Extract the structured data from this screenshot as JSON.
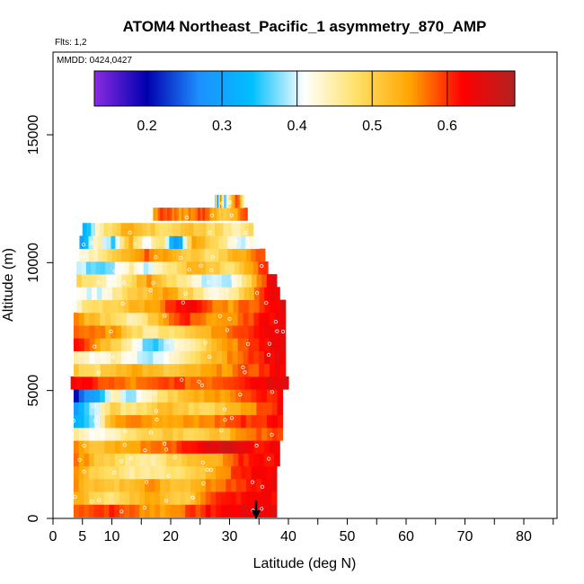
{
  "chart_data": {
    "type": "heatmap",
    "title": "ATOM4 Northeast_Pacific_1 asymmetry_870_AMP",
    "flights_label": "Flts: 1,2",
    "date_label": "MMDD: 0424,0427",
    "xlabel": "Latitude (deg N)",
    "ylabel": "Altitude (m)",
    "xlim": [
      0,
      85
    ],
    "ylim": [
      0,
      17500
    ],
    "x_ticks_minor": [
      0,
      5,
      10,
      15,
      20,
      25,
      30,
      35,
      40,
      45,
      50,
      55,
      60,
      65,
      70,
      75,
      80,
      85
    ],
    "x_tick_labels": [
      {
        "value": 0,
        "label": "0"
      },
      {
        "value": 5,
        "label": "5"
      },
      {
        "value": 10,
        "label": "10"
      },
      {
        "value": 20,
        "label": "20"
      },
      {
        "value": 30,
        "label": "30"
      },
      {
        "value": 40,
        "label": "40"
      },
      {
        "value": 50,
        "label": "50"
      },
      {
        "value": 60,
        "label": "60"
      },
      {
        "value": 70,
        "label": "70"
      },
      {
        "value": 80,
        "label": "80"
      }
    ],
    "y_tick_labels": [
      {
        "value": 0,
        "label": "0"
      },
      {
        "value": 5000,
        "label": "5000"
      },
      {
        "value": 10000,
        "label": "10000"
      },
      {
        "value": 15000,
        "label": "15000"
      }
    ],
    "colorbar": {
      "min": 0.13,
      "max": 0.69,
      "stops": [
        "#8a2be2",
        "#0000b0",
        "#1e90ff",
        "#00bfff",
        "#ffffff",
        "#ffe066",
        "#ffa500",
        "#ff0000",
        "#b22222"
      ],
      "tick_labels": [
        {
          "value": 0.2,
          "label": "0.2"
        },
        {
          "value": 0.3,
          "label": "0.3"
        },
        {
          "value": 0.4,
          "label": "0.4"
        },
        {
          "value": 0.5,
          "label": "0.5"
        },
        {
          "value": 0.6,
          "label": "0.6"
        }
      ]
    },
    "marker": {
      "label": "arrow",
      "latitude": 34.5,
      "altitude": 700
    },
    "rows": [
      {
        "alt": 300,
        "lat_min": 3.5,
        "lat_max": 38,
        "levels": [
          0.58,
          0.6,
          0.6,
          0.58,
          0.56,
          0.55,
          0.58,
          0.6,
          0.62,
          0.63,
          0.64,
          0.64
        ]
      },
      {
        "alt": 800,
        "lat_min": 3.5,
        "lat_max": 38,
        "levels": [
          0.54,
          0.5,
          0.48,
          0.5,
          0.55,
          0.52,
          0.5,
          0.55,
          0.6,
          0.62,
          0.63,
          0.62
        ]
      },
      {
        "alt": 1300,
        "lat_min": 3.5,
        "lat_max": 38,
        "levels": [
          0.55,
          0.52,
          0.5,
          0.53,
          0.56,
          0.53,
          0.52,
          0.55,
          0.58,
          0.6,
          0.62,
          0.63
        ]
      },
      {
        "alt": 1800,
        "lat_min": 3.5,
        "lat_max": 38,
        "levels": [
          0.57,
          0.5,
          0.48,
          0.46,
          0.45,
          0.46,
          0.48,
          0.5,
          0.55,
          0.6,
          0.62,
          0.62
        ]
      },
      {
        "alt": 2300,
        "lat_min": 3.5,
        "lat_max": 38.5,
        "levels": [
          0.58,
          0.52,
          0.5,
          0.46,
          0.45,
          0.48,
          0.52,
          0.53,
          0.55,
          0.6,
          0.63,
          0.62
        ]
      },
      {
        "alt": 2800,
        "lat_min": 3.5,
        "lat_max": 38.5,
        "levels": [
          0.55,
          0.52,
          0.53,
          0.55,
          0.56,
          0.58,
          0.6,
          0.64,
          0.66,
          0.64,
          0.62,
          0.62
        ]
      },
      {
        "alt": 3300,
        "lat_min": 3.5,
        "lat_max": 39,
        "levels": [
          0.45,
          0.42,
          0.44,
          0.48,
          0.5,
          0.52,
          0.5,
          0.5,
          0.52,
          0.55,
          0.58,
          0.6
        ]
      },
      {
        "alt": 3800,
        "lat_min": 3.5,
        "lat_max": 39,
        "levels": [
          0.33,
          0.38,
          0.55,
          0.58,
          0.56,
          0.54,
          0.55,
          0.56,
          0.58,
          0.6,
          0.6,
          0.62
        ]
      },
      {
        "alt": 4300,
        "lat_min": 3.5,
        "lat_max": 39,
        "levels": [
          0.3,
          0.4,
          0.5,
          0.45,
          0.5,
          0.52,
          0.5,
          0.48,
          0.52,
          0.55,
          0.58,
          0.62
        ]
      },
      {
        "alt": 4800,
        "lat_min": 3.5,
        "lat_max": 39,
        "levels": [
          0.22,
          0.3,
          0.45,
          0.38,
          0.45,
          0.5,
          0.52,
          0.54,
          0.56,
          0.58,
          0.6,
          0.62
        ]
      },
      {
        "alt": 5300,
        "lat_min": 3,
        "lat_max": 40,
        "levels": [
          0.63,
          0.6,
          0.58,
          0.56,
          0.57,
          0.6,
          0.58,
          0.58,
          0.6,
          0.62,
          0.64,
          0.66
        ]
      },
      {
        "alt": 5800,
        "lat_min": 3.5,
        "lat_max": 39.5,
        "levels": [
          0.5,
          0.48,
          0.52,
          0.55,
          0.52,
          0.5,
          0.52,
          0.54,
          0.56,
          0.58,
          0.6,
          0.63
        ]
      },
      {
        "alt": 6300,
        "lat_min": 3.5,
        "lat_max": 39.5,
        "levels": [
          0.45,
          0.42,
          0.45,
          0.42,
          0.38,
          0.42,
          0.48,
          0.52,
          0.55,
          0.58,
          0.62,
          0.64
        ]
      },
      {
        "alt": 6800,
        "lat_min": 3.5,
        "lat_max": 39.5,
        "levels": [
          0.62,
          0.55,
          0.5,
          0.42,
          0.35,
          0.4,
          0.45,
          0.5,
          0.55,
          0.58,
          0.62,
          0.64
        ]
      },
      {
        "alt": 7300,
        "lat_min": 3.5,
        "lat_max": 39.5,
        "levels": [
          0.58,
          0.56,
          0.55,
          0.5,
          0.45,
          0.48,
          0.5,
          0.54,
          0.57,
          0.6,
          0.63,
          0.65
        ]
      },
      {
        "alt": 7800,
        "lat_min": 3.5,
        "lat_max": 39.5,
        "levels": [
          0.55,
          0.52,
          0.48,
          0.44,
          0.5,
          0.58,
          0.6,
          0.56,
          0.55,
          0.58,
          0.62,
          0.64
        ]
      },
      {
        "alt": 8300,
        "lat_min": 4,
        "lat_max": 39.5,
        "levels": [
          0.45,
          0.48,
          0.5,
          0.53,
          0.55,
          0.6,
          0.62,
          0.58,
          0.55,
          0.58,
          0.6,
          0.64
        ]
      },
      {
        "alt": 8800,
        "lat_min": 4,
        "lat_max": 38.5,
        "levels": [
          0.42,
          0.4,
          0.45,
          0.5,
          0.52,
          0.55,
          0.5,
          0.45,
          0.42,
          0.48,
          0.58,
          0.64
        ]
      },
      {
        "alt": 9300,
        "lat_min": 4,
        "lat_max": 38,
        "levels": [
          0.5,
          0.45,
          0.42,
          0.5,
          0.55,
          0.5,
          0.45,
          0.4,
          0.38,
          0.42,
          0.55,
          0.64
        ]
      },
      {
        "alt": 9800,
        "lat_min": 4,
        "lat_max": 36.5,
        "levels": [
          0.4,
          0.35,
          0.38,
          0.45,
          0.4,
          0.45,
          0.5,
          0.55,
          0.5,
          0.48,
          0.55,
          0.6
        ]
      },
      {
        "alt": 10300,
        "lat_min": 4.5,
        "lat_max": 36,
        "levels": [
          0.42,
          0.45,
          0.5,
          0.55,
          0.58,
          0.55,
          0.52,
          0.5,
          0.48,
          0.52,
          0.55,
          0.58
        ]
      },
      {
        "alt": 10800,
        "lat_min": 4.5,
        "lat_max": 35,
        "levels": [
          0.3,
          0.45,
          0.35,
          0.55,
          0.4,
          0.5,
          0.25,
          0.55,
          0.5,
          0.45,
          0.4,
          0.42
        ]
      },
      {
        "alt": 11300,
        "lat_min": 5,
        "lat_max": 34,
        "levels": [
          0.32,
          0.45,
          0.5,
          0.55,
          0.52,
          0.48,
          0.5,
          0.52,
          0.5,
          0.48,
          0.45,
          0.5
        ]
      },
      {
        "alt": 11900,
        "lat_min": 17,
        "lat_max": 33,
        "levels": [
          0.55,
          0.6,
          0.58,
          0.55,
          0.56,
          0.58,
          0.6,
          0.55,
          0.5,
          0.52,
          0.55,
          0.6
        ]
      },
      {
        "alt": 12400,
        "lat_min": 27.5,
        "lat_max": 32.5,
        "levels": [
          0.55,
          0.25,
          0.6,
          0.4,
          0.35,
          0.45,
          0.5,
          0.55,
          0.6,
          0.58,
          0.5,
          0.45
        ]
      }
    ]
  }
}
